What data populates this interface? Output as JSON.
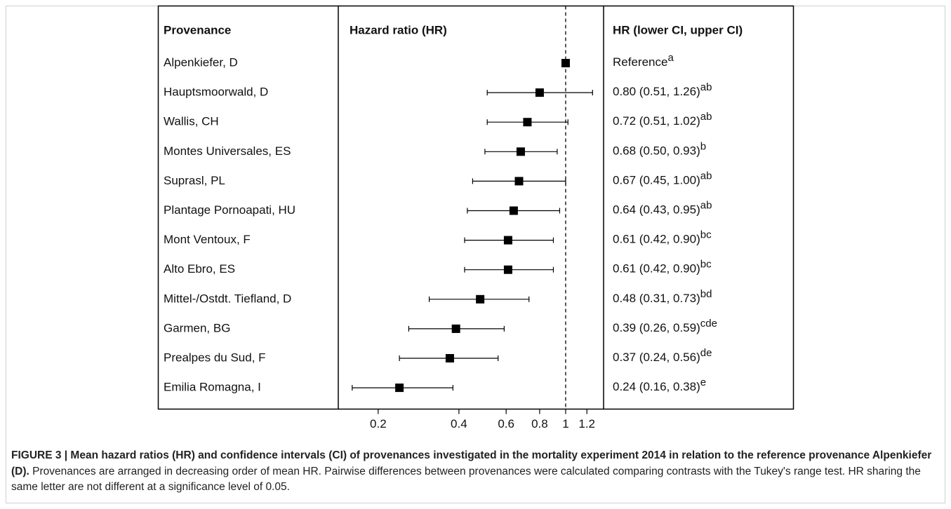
{
  "chart_data": {
    "type": "forest",
    "headers": [
      "Provenance",
      "Hazard ratio (HR)",
      "HR (lower CI, upper CI)"
    ],
    "categories": [
      "Alpenkiefer, D",
      "Hauptsmoorwald, D",
      "Wallis, CH",
      "Montes Universales, ES",
      "Suprasl, PL",
      "Plantage Pornoapati, HU",
      "Mont Ventoux, F",
      "Alto Ebro, ES",
      "Mittel-/Ostdt. Tiefland, D",
      "Garmen, BG",
      "Prealpes du Sud, F",
      "Emilia Romagna, I"
    ],
    "values": [
      1,
      0.8,
      0.72,
      0.68,
      0.67,
      0.64,
      0.61,
      0.61,
      0.48,
      0.39,
      0.37,
      0.24
    ],
    "lower": [
      null,
      0.51,
      0.51,
      0.5,
      0.45,
      0.43,
      0.42,
      0.42,
      0.31,
      0.26,
      0.24,
      0.16
    ],
    "upper": [
      null,
      1.26,
      1.02,
      0.93,
      1.0,
      0.95,
      0.9,
      0.9,
      0.73,
      0.59,
      0.56,
      0.38
    ],
    "value_labels": [
      "Reference",
      "0.80 (0.51, 1.26)",
      "0.72 (0.51, 1.02)",
      "0.68 (0.50, 0.93)",
      "0.67 (0.45, 1.00)",
      "0.64 (0.43, 0.95)",
      "0.61 (0.42, 0.90)",
      "0.61 (0.42, 0.90)",
      "0.48 (0.31, 0.73)",
      "0.39 (0.26, 0.59)",
      "0.37 (0.24, 0.56)",
      "0.24 (0.16, 0.38)"
    ],
    "letters": [
      "a",
      "ab",
      "ab",
      "b",
      "ab",
      "ab",
      "bc",
      "bc",
      "bd",
      "cde",
      "de",
      "e"
    ],
    "xlim": [
      0.142,
      1.385
    ],
    "xticks": [
      0.2,
      0.4,
      0.6,
      0.8,
      1,
      1.2
    ],
    "log_scale": true,
    "reference_line": 1,
    "color": "#000000",
    "caption_bold": "FIGURE 3 | Mean hazard ratios (HR) and confidence intervals (CI) of provenances investigated in the mortality experiment 2014 in relation to the reference provenance Alpenkiefer (D).",
    "caption_text": "Provenances are arranged in decreasing order of mean HR. Pairwise differences between provenances were calculated comparing contrasts with the Tukey's range test. HR sharing the same letter are not different at a significance level of 0.05."
  }
}
